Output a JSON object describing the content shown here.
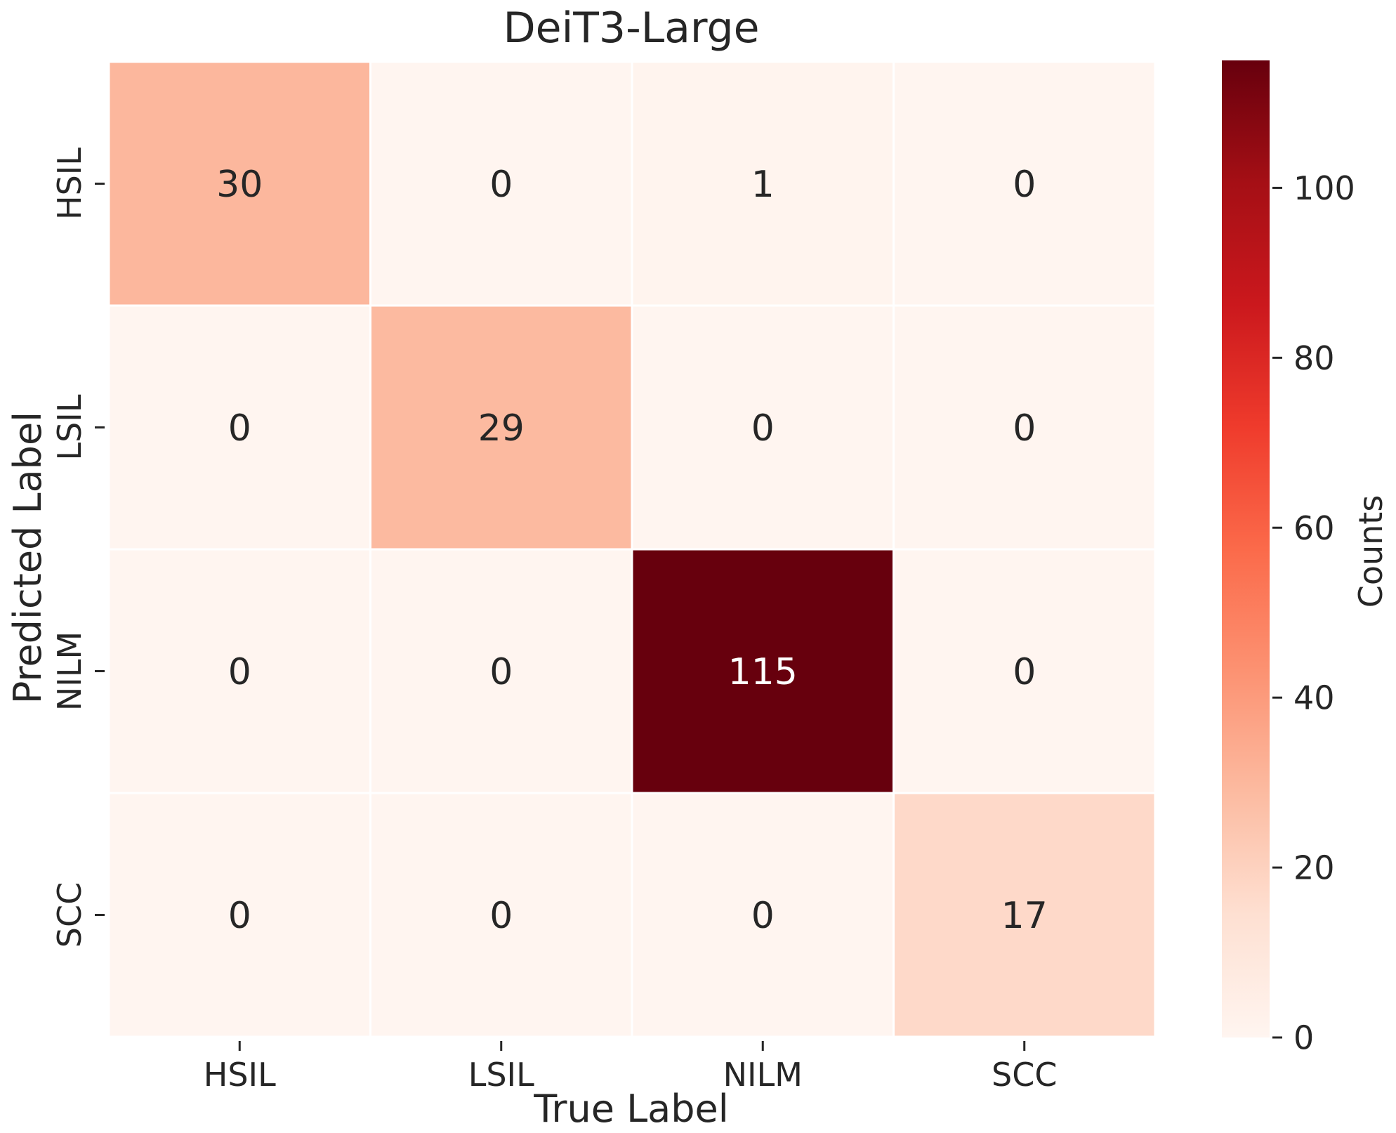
{
  "chart_data": {
    "type": "heatmap",
    "title": "DeiT3-Large",
    "xlabel": "True Label",
    "ylabel": "Predicted Label",
    "x_categories": [
      "HSIL",
      "LSIL",
      "NILM",
      "SCC"
    ],
    "y_categories": [
      "HSIL",
      "LSIL",
      "NILM",
      "SCC"
    ],
    "values": [
      [
        30,
        0,
        1,
        0
      ],
      [
        0,
        29,
        0,
        0
      ],
      [
        0,
        0,
        115,
        0
      ],
      [
        0,
        0,
        0,
        17
      ]
    ],
    "colormap": "Reds",
    "color_range": [
      0,
      115
    ],
    "colorbar": {
      "label": "Counts",
      "ticks": [
        0,
        20,
        40,
        60,
        80,
        100
      ]
    },
    "colors": {
      "low": "#fff5f0",
      "high": "#67000d",
      "cell_border": "#ffffff",
      "annotation_dark": "#262626",
      "annotation_light": "#ffffff"
    }
  }
}
